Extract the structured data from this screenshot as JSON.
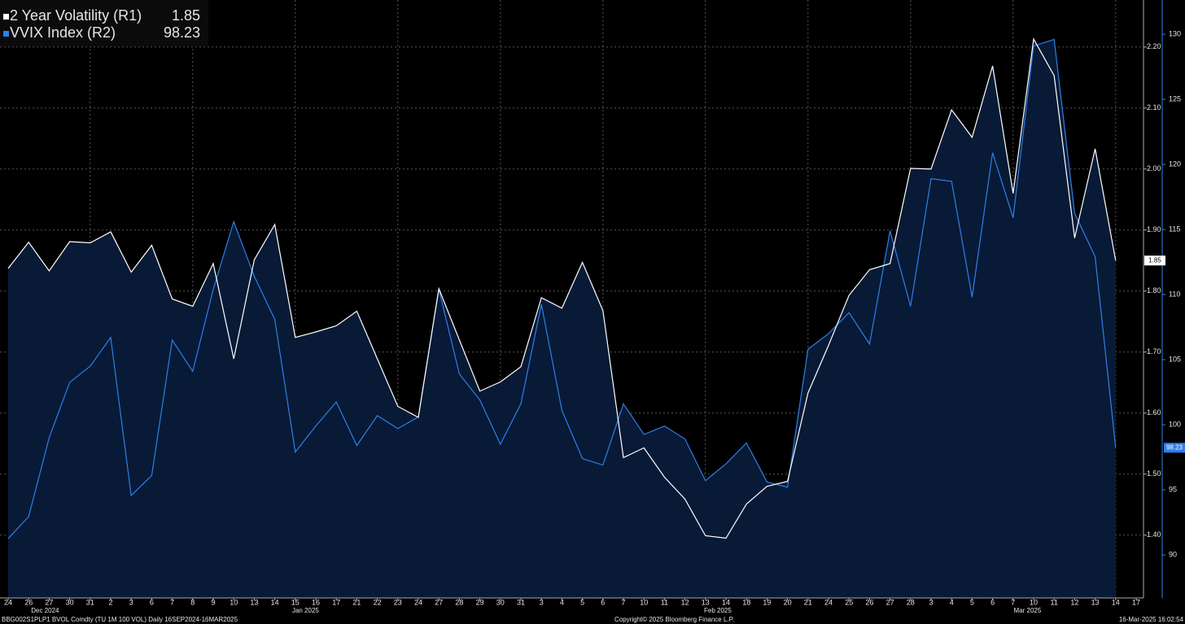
{
  "chart_data": {
    "type": "line",
    "categories": [
      "24",
      "26",
      "27",
      "30",
      "31",
      "2",
      "3",
      "6",
      "7",
      "8",
      "9",
      "10",
      "13",
      "14",
      "15",
      "16",
      "17",
      "21",
      "22",
      "23",
      "24",
      "27",
      "28",
      "29",
      "30",
      "31",
      "3",
      "4",
      "5",
      "6",
      "7",
      "10",
      "11",
      "12",
      "13",
      "14",
      "18",
      "19",
      "20",
      "21",
      "24",
      "25",
      "26",
      "27",
      "28",
      "3",
      "4",
      "5",
      "6",
      "7",
      "10",
      "11",
      "12",
      "13",
      "14",
      "17"
    ],
    "month_labels": [
      "Dec 2024",
      "Jan 2025",
      "Feb 2025",
      "Mar 2025"
    ],
    "series": [
      {
        "name": "2 Year Volatility (R1)",
        "color": "#ffffff",
        "axis": "y",
        "values": [
          1.837,
          1.88,
          1.833,
          1.881,
          1.879,
          1.897,
          1.831,
          1.875,
          1.787,
          1.775,
          1.845,
          1.689,
          1.851,
          1.909,
          1.724,
          1.733,
          1.743,
          1.767,
          1.689,
          1.611,
          1.593,
          1.804,
          1.72,
          1.636,
          1.651,
          1.676,
          1.789,
          1.772,
          1.847,
          1.768,
          1.527,
          1.543,
          1.495,
          1.459,
          1.399,
          1.395,
          1.451,
          1.48,
          1.488,
          1.633,
          1.711,
          1.793,
          1.835,
          1.845,
          2.001,
          2.0,
          2.097,
          2.052,
          2.169,
          1.96,
          2.213,
          2.153,
          1.887,
          2.033,
          1.85,
          null
        ]
      },
      {
        "name": "VVIX Index  (R2)",
        "color": "#2f7fe8",
        "axis": "y2",
        "values": [
          91.25,
          92.94,
          99.0,
          103.25,
          104.5,
          106.7,
          94.56,
          96.1,
          106.5,
          104.1,
          110.4,
          115.6,
          111.4,
          108.1,
          97.9,
          99.9,
          101.75,
          98.4,
          100.7,
          99.7,
          100.6,
          110.4,
          103.9,
          101.9,
          98.5,
          101.6,
          109.25,
          101.1,
          97.4,
          96.9,
          101.6,
          99.25,
          99.9,
          98.9,
          95.7,
          97.0,
          98.6,
          95.6,
          95.2,
          105.8,
          107.0,
          108.6,
          106.2,
          114.9,
          109.1,
          118.9,
          118.7,
          109.8,
          120.9,
          115.9,
          129.1,
          129.6,
          116.25,
          112.9,
          98.23,
          null
        ]
      }
    ],
    "ylim": [
      1.297,
      2.277
    ],
    "yticks": [
      {
        "value": 1.4,
        "label": "1.40"
      },
      {
        "value": 1.5,
        "label": "1.50"
      },
      {
        "value": 1.6,
        "label": "1.60"
      },
      {
        "value": 1.7,
        "label": "1.70"
      },
      {
        "value": 1.8,
        "label": "1.80"
      },
      {
        "value": 1.9,
        "label": "1.90"
      },
      {
        "value": 2.0,
        "label": "2.00"
      },
      {
        "value": 2.1,
        "label": "2.10"
      },
      {
        "value": 2.2,
        "label": "2.20"
      }
    ],
    "y2lim": [
      86.69,
      132.63
    ],
    "y2ticks": [
      90,
      95,
      100,
      105,
      110,
      115,
      120,
      125,
      130
    ],
    "grid": true,
    "legend": "upper left"
  },
  "footer": {
    "source": "BBG002S1PLP1 BVOL Comdty (TU 1M 100 VOL)  Daily 16SEP2024-16MAR2025",
    "copyright": "Copyright© 2025 Bloomberg Finance L.P.",
    "timestamp": "16-Mar-2025 16:02:54"
  }
}
